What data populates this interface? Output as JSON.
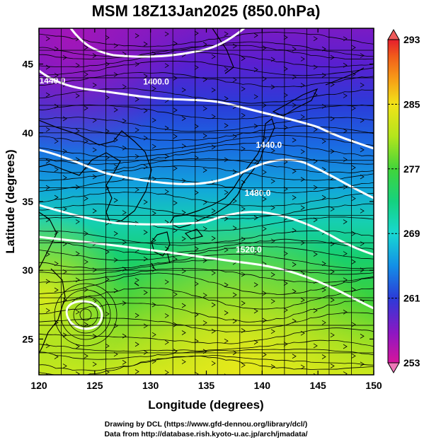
{
  "title": "MSM 18Z13Jan2025 (850.0hPa)",
  "x_axis": {
    "label": "Longitude (degrees)",
    "range": [
      120,
      150
    ],
    "ticks": [
      120,
      125,
      130,
      135,
      140,
      145,
      150
    ],
    "tick_labels": [
      "120",
      "125",
      "130",
      "135",
      "140",
      "145",
      "150"
    ]
  },
  "y_axis": {
    "label": "Latitude  (degrees)",
    "range": [
      22.4,
      47.6
    ],
    "ticks": [
      25,
      30,
      35,
      40,
      45
    ],
    "tick_labels": [
      "25",
      "30",
      "35",
      "40",
      "45"
    ]
  },
  "colorbar": {
    "range": [
      253,
      293
    ],
    "labels": [
      "293",
      "285",
      "277",
      "269",
      "261",
      "253"
    ],
    "label_values": [
      293,
      285,
      277,
      269,
      261,
      253
    ],
    "colors": [
      "#d6159b",
      "#8f16c2",
      "#2b3bd8",
      "#138fe6",
      "#18d8d2",
      "#15d27e",
      "#42d43a",
      "#b3e51c",
      "#f2e318",
      "#f79b17",
      "#f15a1b",
      "#e51e2d"
    ],
    "arrow_top_color": "#ef5a5a",
    "arrow_bottom_color": "#ee77b8"
  },
  "contour_labels": [
    {
      "text": "1440.0",
      "lon": 121.2,
      "lat": 43.6
    },
    {
      "text": "1400.0",
      "lon": 130.5,
      "lat": 43.5
    },
    {
      "text": "1440.0",
      "lon": 140.6,
      "lat": 38.9
    },
    {
      "text": "1480.0",
      "lon": 139.6,
      "lat": 35.4
    },
    {
      "text": "1520.0",
      "lon": 138.8,
      "lat": 31.3
    }
  ],
  "credits": [
    "Drawing by DCL (https://www.gfd-dennou.org/library/dcl/)",
    "Data from http://database.rish.kyoto-u.ac.jp/arch/jmadata/"
  ]
}
